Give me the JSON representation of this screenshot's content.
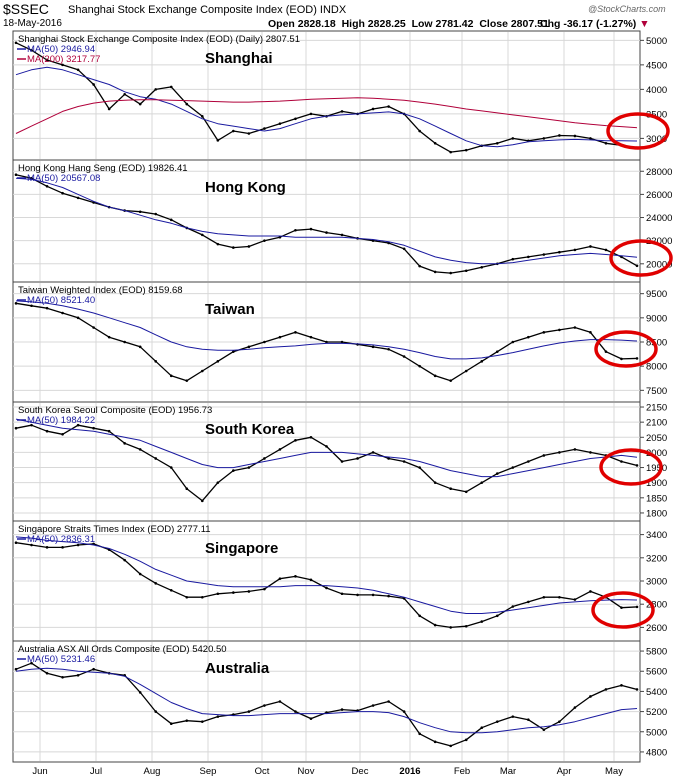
{
  "header": {
    "symbol": "$SSEC",
    "name": "Shanghai Stock Exchange Composite Index (EOD)",
    "exchange": "INDX",
    "date": "18-May-2016",
    "open": "Open 2828.18",
    "high": "High 2828.25",
    "low": "Low 2781.42",
    "close": "Close 2807.51",
    "chg": "Chg -36.17 (-1.27%)",
    "credit": "@StockCharts.com"
  },
  "colors": {
    "price": "#000000",
    "ma50": "#1a1aa0",
    "ma200": "#b0003a",
    "highlight_circle": "#e00000",
    "grid": "#d8d8d8"
  },
  "chart_data": [
    {
      "type": "line",
      "title": "Shanghai Stock Exchange Composite Index (EOD) (Daily) 2807.51",
      "label": "Shanghai",
      "legend": [
        "MA(50) 2946.94",
        "MA(200) 3217.77"
      ],
      "y_ticks": [
        3000,
        3500,
        4000,
        4500,
        5000
      ],
      "ylim": [
        2600,
        5150
      ],
      "x_ticks": [
        "Jun",
        "Jul",
        "Aug",
        "Sep",
        "Oct",
        "Nov",
        "Dec",
        "2016",
        "Feb",
        "Mar",
        "Apr",
        "May"
      ],
      "series": [
        {
          "name": "price",
          "values": [
            4950,
            4800,
            4600,
            4500,
            4400,
            4100,
            3600,
            3900,
            3700,
            4000,
            4050,
            3700,
            3450,
            2960,
            3150,
            3100,
            3200,
            3300,
            3400,
            3500,
            3450,
            3550,
            3500,
            3600,
            3650,
            3500,
            3150,
            2900,
            2720,
            2760,
            2850,
            2900,
            3000,
            2950,
            3000,
            3060,
            3050,
            3000,
            2900,
            2860,
            2810
          ]
        },
        {
          "name": "MA(50)",
          "values": [
            4300,
            4400,
            4450,
            4400,
            4300,
            4200,
            4100,
            3950,
            3850,
            3800,
            3700,
            3550,
            3400,
            3300,
            3250,
            3200,
            3150,
            3200,
            3300,
            3400,
            3450,
            3480,
            3500,
            3520,
            3540,
            3500,
            3400,
            3250,
            3100,
            2950,
            2850,
            2830,
            2870,
            2930,
            2950,
            2970,
            2980,
            2970,
            2950,
            2950,
            2947
          ]
        },
        {
          "name": "MA(200)",
          "values": [
            3100,
            3250,
            3400,
            3550,
            3650,
            3720,
            3760,
            3780,
            3790,
            3790,
            3780,
            3770,
            3760,
            3750,
            3740,
            3740,
            3750,
            3760,
            3780,
            3800,
            3810,
            3820,
            3830,
            3820,
            3800,
            3780,
            3740,
            3700,
            3650,
            3600,
            3560,
            3520,
            3480,
            3440,
            3400,
            3360,
            3320,
            3290,
            3260,
            3240,
            3218
          ]
        }
      ]
    },
    {
      "type": "line",
      "title": "Hong Kong Hang Seng (EOD) 19826.41",
      "label": "Hong Kong",
      "legend": [
        "MA(50) 20567.08"
      ],
      "y_ticks": [
        20000,
        22000,
        24000,
        26000,
        28000
      ],
      "ylim": [
        18600,
        28800
      ],
      "x_ticks": [],
      "series": [
        {
          "name": "price",
          "values": [
            27700,
            27400,
            26700,
            26100,
            25700,
            25300,
            24900,
            24600,
            24500,
            24300,
            23800,
            23100,
            22500,
            21700,
            21400,
            21500,
            22000,
            22300,
            22900,
            23000,
            22700,
            22500,
            22200,
            22000,
            21800,
            21300,
            19800,
            19300,
            19200,
            19400,
            19700,
            20000,
            20400,
            20600,
            20800,
            21000,
            21200,
            21500,
            21200,
            20600,
            19830
          ]
        },
        {
          "name": "MA(50)",
          "values": [
            27400,
            27300,
            27000,
            26600,
            26000,
            25400,
            24900,
            24600,
            24200,
            23800,
            23500,
            23100,
            22800,
            22600,
            22500,
            22400,
            22400,
            22400,
            22300,
            22300,
            22300,
            22300,
            22200,
            22100,
            21900,
            21600,
            21100,
            20600,
            20300,
            20100,
            20000,
            20000,
            20100,
            20300,
            20500,
            20700,
            20800,
            20900,
            20800,
            20700,
            20567
          ]
        }
      ]
    },
    {
      "type": "line",
      "title": "Taiwan Weighted Index (EOD) 8159.68",
      "label": "Taiwan",
      "legend": [
        "MA(50) 8521.40"
      ],
      "y_ticks": [
        7500,
        8000,
        8500,
        9000,
        9500
      ],
      "ylim": [
        7300,
        9700
      ],
      "x_ticks": [],
      "series": [
        {
          "name": "price",
          "values": [
            9300,
            9250,
            9200,
            9100,
            9000,
            8800,
            8600,
            8500,
            8400,
            8100,
            7800,
            7700,
            7900,
            8100,
            8300,
            8400,
            8500,
            8600,
            8700,
            8600,
            8500,
            8500,
            8450,
            8400,
            8350,
            8200,
            8000,
            7800,
            7700,
            7900,
            8100,
            8300,
            8500,
            8600,
            8700,
            8750,
            8800,
            8700,
            8300,
            8150,
            8160
          ]
        },
        {
          "name": "MA(50)",
          "values": [
            9350,
            9330,
            9300,
            9250,
            9180,
            9100,
            9000,
            8900,
            8800,
            8650,
            8500,
            8400,
            8350,
            8330,
            8330,
            8350,
            8380,
            8400,
            8420,
            8450,
            8470,
            8470,
            8460,
            8440,
            8400,
            8350,
            8280,
            8200,
            8150,
            8150,
            8170,
            8220,
            8280,
            8350,
            8420,
            8480,
            8520,
            8550,
            8550,
            8540,
            8521
          ]
        }
      ]
    },
    {
      "type": "line",
      "title": "South Korea Seoul Composite (EOD) 1956.73",
      "label": "South Korea",
      "legend": [
        "MA(50) 1984.22"
      ],
      "y_ticks": [
        1800,
        1850,
        1900,
        1950,
        2000,
        2050,
        2100,
        2150
      ],
      "ylim": [
        1780,
        2160
      ],
      "x_ticks": [],
      "series": [
        {
          "name": "price",
          "values": [
            2080,
            2090,
            2070,
            2060,
            2090,
            2080,
            2070,
            2030,
            2010,
            1980,
            1950,
            1880,
            1840,
            1900,
            1940,
            1950,
            1980,
            2010,
            2040,
            2050,
            2020,
            1970,
            1980,
            2000,
            1980,
            1970,
            1950,
            1900,
            1880,
            1870,
            1900,
            1930,
            1950,
            1970,
            1990,
            2000,
            2010,
            2000,
            1990,
            1970,
            1957
          ]
        },
        {
          "name": "MA(50)",
          "values": [
            2110,
            2100,
            2090,
            2080,
            2075,
            2070,
            2060,
            2050,
            2040,
            2020,
            2000,
            1980,
            1960,
            1950,
            1950,
            1960,
            1970,
            1980,
            1990,
            2000,
            2000,
            2000,
            1995,
            1990,
            1985,
            1980,
            1970,
            1955,
            1940,
            1930,
            1920,
            1920,
            1930,
            1940,
            1950,
            1960,
            1970,
            1980,
            1985,
            1990,
            1984
          ]
        }
      ]
    },
    {
      "type": "line",
      "title": "Singapore Straits Times Index (EOD) 2777.11",
      "label": "Singapore",
      "legend": [
        "MA(50) 2836.31"
      ],
      "y_ticks": [
        2600,
        2800,
        3000,
        3200,
        3400
      ],
      "ylim": [
        2500,
        3500
      ],
      "x_ticks": [],
      "series": [
        {
          "name": "price",
          "values": [
            3330,
            3310,
            3290,
            3290,
            3310,
            3320,
            3270,
            3180,
            3060,
            2980,
            2920,
            2860,
            2860,
            2890,
            2900,
            2910,
            2930,
            3020,
            3040,
            3010,
            2940,
            2890,
            2880,
            2880,
            2870,
            2850,
            2700,
            2620,
            2600,
            2610,
            2650,
            2700,
            2780,
            2820,
            2860,
            2860,
            2840,
            2910,
            2860,
            2770,
            2777
          ]
        },
        {
          "name": "MA(50)",
          "values": [
            3380,
            3370,
            3350,
            3340,
            3330,
            3310,
            3280,
            3230,
            3170,
            3100,
            3050,
            3000,
            2980,
            2960,
            2950,
            2950,
            2950,
            2950,
            2960,
            2960,
            2960,
            2950,
            2940,
            2920,
            2890,
            2860,
            2820,
            2780,
            2740,
            2720,
            2720,
            2730,
            2750,
            2770,
            2790,
            2810,
            2820,
            2830,
            2835,
            2840,
            2836
          ]
        }
      ]
    },
    {
      "type": "line",
      "title": "Australia ASX All Ords Composite (EOD) 5420.50",
      "label": "Australia",
      "legend": [
        "MA(50) 5231.46"
      ],
      "y_ticks": [
        4800,
        5000,
        5200,
        5400,
        5600,
        5800
      ],
      "ylim": [
        4720,
        5880
      ],
      "x_ticks": [
        "Jun",
        "Jul",
        "Aug",
        "Sep",
        "Oct",
        "Nov",
        "Dec",
        "2016",
        "Feb",
        "Mar",
        "Apr",
        "May"
      ],
      "series": [
        {
          "name": "price",
          "values": [
            5620,
            5680,
            5580,
            5540,
            5560,
            5620,
            5580,
            5560,
            5390,
            5200,
            5080,
            5110,
            5100,
            5150,
            5170,
            5200,
            5260,
            5300,
            5200,
            5130,
            5190,
            5220,
            5210,
            5260,
            5300,
            5200,
            4980,
            4900,
            4860,
            4920,
            5040,
            5100,
            5150,
            5120,
            5020,
            5100,
            5240,
            5350,
            5420,
            5460,
            5420
          ]
        },
        {
          "name": "MA(50)",
          "values": [
            5600,
            5620,
            5630,
            5620,
            5600,
            5590,
            5580,
            5550,
            5470,
            5380,
            5290,
            5230,
            5180,
            5170,
            5160,
            5160,
            5170,
            5180,
            5180,
            5180,
            5180,
            5190,
            5200,
            5200,
            5190,
            5150,
            5090,
            5040,
            5000,
            4990,
            4990,
            5000,
            5020,
            5040,
            5050,
            5070,
            5100,
            5140,
            5180,
            5220,
            5231
          ]
        }
      ]
    }
  ]
}
